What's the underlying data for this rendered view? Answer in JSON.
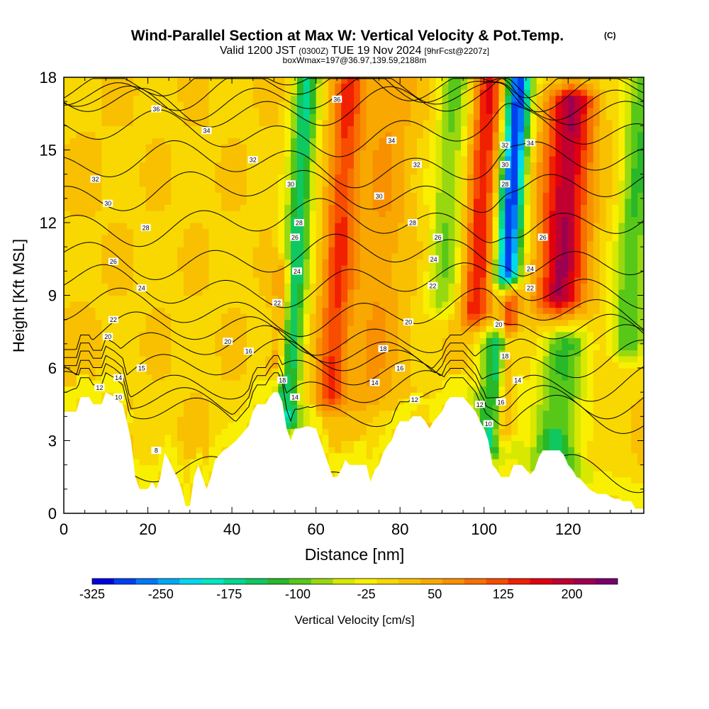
{
  "chart_data": {
    "type": "heatmap",
    "title": "Wind-Parallel Section at Max W: Vertical Velocity & Pot.Temp.",
    "title_mark": "(C)",
    "subtitle_parts": [
      "Valid 1200 JST",
      "(0300Z)",
      "TUE 19 Nov 2024",
      "[9hrFcst@2207z]"
    ],
    "subtitle2": "boxWmax=197@36.97,139.59,2188m",
    "xlabel": "Distance [nm]",
    "ylabel": "Height [Kft MSL]",
    "xlim": [
      0,
      138
    ],
    "ylim": [
      0,
      18
    ],
    "x_ticks": [
      0,
      20,
      40,
      60,
      80,
      100,
      120
    ],
    "y_ticks": [
      0,
      3,
      6,
      9,
      12,
      15,
      18
    ],
    "grid": false,
    "colorbar": {
      "label": "Vertical Velocity [cm/s]",
      "min": -325,
      "max": 250,
      "step": 25,
      "tick_values": [
        -325,
        -250,
        -175,
        -100,
        -25,
        50,
        125,
        200
      ],
      "colors": [
        "#0000e0",
        "#0040f0",
        "#0078f8",
        "#00a8f8",
        "#00d8f0",
        "#00e8c0",
        "#00d890",
        "#10c860",
        "#28b828",
        "#58c818",
        "#98d810",
        "#d8e800",
        "#f8f000",
        "#f8d800",
        "#f8c000",
        "#f8a800",
        "#f89000",
        "#f87000",
        "#f84c00",
        "#f02000",
        "#e00010",
        "#c00030",
        "#9c0050",
        "#780070"
      ]
    },
    "velocity_features": [
      {
        "x": 0,
        "top": 18,
        "bottom": 0,
        "w": 6,
        "v": 25
      },
      {
        "x": 53,
        "top": 17.8,
        "bottom": 4,
        "w": 3.0,
        "v": -150
      },
      {
        "x": 51,
        "top": 10,
        "bottom": 6,
        "w": 2.0,
        "v": 120
      },
      {
        "x": 63.5,
        "top": 18,
        "bottom": 5,
        "w": 3.5,
        "v": 150
      },
      {
        "x": 73,
        "top": 18,
        "bottom": 5,
        "w": 6.0,
        "v": 75
      },
      {
        "x": 90,
        "top": 18,
        "bottom": 9,
        "w": 4.0,
        "v": -75
      },
      {
        "x": 98,
        "top": 18,
        "bottom": 8.5,
        "w": 3.5,
        "v": 175
      },
      {
        "x": 102,
        "top": 7,
        "bottom": 3,
        "w": 4.0,
        "v": -150
      },
      {
        "x": 105.5,
        "top": 18,
        "bottom": 10,
        "w": 3.0,
        "v": -300
      },
      {
        "x": 104.5,
        "top": 9,
        "bottom": 3.5,
        "w": 2.0,
        "v": 150
      },
      {
        "x": 118,
        "top": 17,
        "bottom": 9,
        "w": 5.5,
        "v": 225
      },
      {
        "x": 117,
        "top": 7.0,
        "bottom": 1.5,
        "w": 6.0,
        "v": -100
      },
      {
        "x": 134,
        "top": 18,
        "bottom": 7,
        "w": 4.0,
        "v": -100
      }
    ],
    "theta_levels": [
      8,
      10,
      12,
      14,
      16,
      18,
      20,
      22,
      24,
      26,
      28,
      30,
      32,
      34,
      36
    ],
    "contour_labels": [
      {
        "x": 22,
        "y": 16.7,
        "text": "36"
      },
      {
        "x": 65,
        "y": 17.1,
        "text": "36"
      },
      {
        "x": 34,
        "y": 15.8,
        "text": "34"
      },
      {
        "x": 78,
        "y": 15.4,
        "text": "34"
      },
      {
        "x": 111,
        "y": 15.3,
        "text": "34"
      },
      {
        "x": 7.5,
        "y": 13.8,
        "text": "32"
      },
      {
        "x": 45,
        "y": 14.6,
        "text": "32"
      },
      {
        "x": 84,
        "y": 14.4,
        "text": "32"
      },
      {
        "x": 105,
        "y": 15.2,
        "text": "32"
      },
      {
        "x": 10.5,
        "y": 12.8,
        "text": "30"
      },
      {
        "x": 54,
        "y": 13.6,
        "text": "30"
      },
      {
        "x": 75,
        "y": 13.1,
        "text": "30"
      },
      {
        "x": 105,
        "y": 14.4,
        "text": "30"
      },
      {
        "x": 19.5,
        "y": 11.8,
        "text": "28"
      },
      {
        "x": 56,
        "y": 12.0,
        "text": "28"
      },
      {
        "x": 83,
        "y": 12.0,
        "text": "28"
      },
      {
        "x": 105,
        "y": 13.6,
        "text": "28"
      },
      {
        "x": 11.8,
        "y": 10.4,
        "text": "26"
      },
      {
        "x": 55,
        "y": 11.4,
        "text": "26"
      },
      {
        "x": 89,
        "y": 11.4,
        "text": "26"
      },
      {
        "x": 114,
        "y": 11.4,
        "text": "26"
      },
      {
        "x": 18.5,
        "y": 9.3,
        "text": "24"
      },
      {
        "x": 55.5,
        "y": 10.0,
        "text": "24"
      },
      {
        "x": 88,
        "y": 10.5,
        "text": "24"
      },
      {
        "x": 111,
        "y": 10.1,
        "text": "24"
      },
      {
        "x": 11.8,
        "y": 8.0,
        "text": "22"
      },
      {
        "x": 87.8,
        "y": 9.4,
        "text": "22"
      },
      {
        "x": 111,
        "y": 9.3,
        "text": "22"
      },
      {
        "x": 10.5,
        "y": 7.3,
        "text": "20"
      },
      {
        "x": 39,
        "y": 7.1,
        "text": "20"
      },
      {
        "x": 82,
        "y": 7.9,
        "text": "20"
      },
      {
        "x": 103.5,
        "y": 7.8,
        "text": "20"
      },
      {
        "x": 50.8,
        "y": 8.7,
        "text": "22"
      },
      {
        "x": 44,
        "y": 6.7,
        "text": "16"
      },
      {
        "x": 18.5,
        "y": 6.0,
        "text": "15"
      },
      {
        "x": 76,
        "y": 6.8,
        "text": "18"
      },
      {
        "x": 80,
        "y": 6.0,
        "text": "16"
      },
      {
        "x": 105,
        "y": 6.5,
        "text": "18"
      },
      {
        "x": 13,
        "y": 5.6,
        "text": "14"
      },
      {
        "x": 52,
        "y": 5.5,
        "text": "18"
      },
      {
        "x": 74,
        "y": 5.4,
        "text": "14"
      },
      {
        "x": 108,
        "y": 5.5,
        "text": "14"
      },
      {
        "x": 8.5,
        "y": 5.2,
        "text": "12"
      },
      {
        "x": 13,
        "y": 4.8,
        "text": "10"
      },
      {
        "x": 55,
        "y": 4.8,
        "text": "14"
      },
      {
        "x": 83.5,
        "y": 4.7,
        "text": "12"
      },
      {
        "x": 99,
        "y": 4.5,
        "text": "12"
      },
      {
        "x": 104,
        "y": 4.6,
        "text": "16"
      },
      {
        "x": 101,
        "y": 3.7,
        "text": "10"
      },
      {
        "x": 22,
        "y": 2.6,
        "text": "8"
      }
    ],
    "terrain": [
      [
        0,
        4.2
      ],
      [
        3,
        4.2
      ],
      [
        4,
        4.8
      ],
      [
        6,
        4.8
      ],
      [
        7,
        4.5
      ],
      [
        9,
        4.5
      ],
      [
        10,
        5.0
      ],
      [
        12,
        4.8
      ],
      [
        14,
        4.5
      ],
      [
        15,
        3.8
      ],
      [
        16,
        3.0
      ],
      [
        16.5,
        2.3
      ],
      [
        17,
        1.5
      ],
      [
        18,
        1.0
      ],
      [
        20,
        1.0
      ],
      [
        21,
        1.3
      ],
      [
        22,
        1.0
      ],
      [
        23,
        1.5
      ],
      [
        24,
        2.5
      ],
      [
        25,
        2.2
      ],
      [
        26,
        1.8
      ],
      [
        27,
        1.5
      ],
      [
        28,
        1.0
      ],
      [
        28.5,
        0.5
      ],
      [
        29,
        0.3
      ],
      [
        30,
        0.3
      ],
      [
        30.5,
        1.0
      ],
      [
        31,
        1.5
      ],
      [
        32,
        2.0
      ],
      [
        33,
        1.5
      ],
      [
        34,
        1.0
      ],
      [
        35,
        1.5
      ],
      [
        36,
        2.2
      ],
      [
        37,
        2.4
      ],
      [
        38,
        2.6
      ],
      [
        39,
        2.7
      ],
      [
        41,
        3.0
      ],
      [
        42,
        3.2
      ],
      [
        44,
        3.6
      ],
      [
        45,
        4.2
      ],
      [
        46,
        4.5
      ],
      [
        47,
        4.5
      ],
      [
        48,
        4.5
      ],
      [
        49,
        4.8
      ],
      [
        50,
        5.0
      ],
      [
        51,
        5.0
      ],
      [
        52,
        4.6
      ],
      [
        53,
        3.5
      ],
      [
        54,
        3.0
      ],
      [
        54.5,
        3.3
      ],
      [
        55,
        3.5
      ],
      [
        56,
        3.5
      ],
      [
        58,
        3.6
      ],
      [
        60,
        3.5
      ],
      [
        61,
        3.0
      ],
      [
        62,
        2.5
      ],
      [
        63,
        2.0
      ],
      [
        64,
        1.5
      ],
      [
        65,
        1.5
      ],
      [
        66,
        1.8
      ],
      [
        67,
        2.2
      ],
      [
        68,
        2.0
      ],
      [
        69,
        2.0
      ],
      [
        70,
        2.0
      ],
      [
        71,
        2.0
      ],
      [
        72,
        2.0
      ],
      [
        72.5,
        1.3
      ],
      [
        73,
        1.3
      ],
      [
        74,
        1.8
      ],
      [
        75,
        2.0
      ],
      [
        76,
        2.5
      ],
      [
        77,
        2.8
      ],
      [
        78,
        3.0
      ],
      [
        79,
        3.5
      ],
      [
        80,
        3.8
      ],
      [
        82,
        3.8
      ],
      [
        83,
        4.0
      ],
      [
        84,
        4.0
      ],
      [
        85,
        4.0
      ],
      [
        86,
        3.8
      ],
      [
        87,
        3.5
      ],
      [
        88,
        3.8
      ],
      [
        89,
        4.0
      ],
      [
        90,
        4.2
      ],
      [
        91,
        4.6
      ],
      [
        92,
        4.8
      ],
      [
        93,
        4.8
      ],
      [
        94,
        4.8
      ],
      [
        95,
        4.8
      ],
      [
        96,
        4.6
      ],
      [
        97,
        4.4
      ],
      [
        98,
        4.2
      ],
      [
        99,
        3.8
      ],
      [
        100,
        3.5
      ],
      [
        101,
        3.0
      ],
      [
        101.5,
        2.5
      ],
      [
        102,
        2.0
      ],
      [
        103,
        1.8
      ],
      [
        104,
        1.5
      ],
      [
        106,
        1.5
      ],
      [
        107,
        2.0
      ],
      [
        108,
        2.0
      ],
      [
        109,
        2.0
      ],
      [
        110,
        1.8
      ],
      [
        111,
        1.6
      ],
      [
        112,
        1.8
      ],
      [
        113,
        2.3
      ],
      [
        114,
        2.6
      ],
      [
        115,
        2.6
      ],
      [
        116,
        2.6
      ],
      [
        117,
        2.6
      ],
      [
        118,
        2.6
      ],
      [
        119,
        2.4
      ],
      [
        120,
        2.0
      ],
      [
        121,
        1.8
      ],
      [
        122,
        1.5
      ],
      [
        123,
        1.4
      ],
      [
        124,
        1.2
      ],
      [
        125,
        1.0
      ],
      [
        126,
        0.9
      ],
      [
        127,
        0.8
      ],
      [
        128,
        0.8
      ],
      [
        129,
        0.8
      ],
      [
        130,
        0.7
      ],
      [
        131,
        0.6
      ],
      [
        132,
        0.6
      ],
      [
        133,
        0.5
      ],
      [
        134,
        0.5
      ],
      [
        135,
        0.5
      ],
      [
        136,
        0.2
      ],
      [
        137,
        0.2
      ],
      [
        138,
        0.2
      ]
    ]
  }
}
